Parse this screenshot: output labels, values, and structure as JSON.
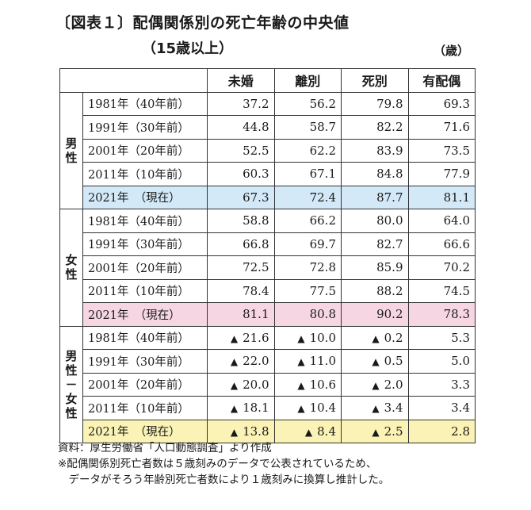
{
  "title": "〔図表１〕配偶関係別の死亡年齢の中央値",
  "subtitle": "（15歳以上）",
  "unit": "（歳）",
  "headers": [
    "未婚",
    "離別",
    "死別",
    "有配偶"
  ],
  "groups": [
    {
      "label": "男性",
      "rows": [
        {
          "year": "1981年（40年前）",
          "values": [
            "37.2",
            "56.2",
            "79.8",
            "69.3"
          ]
        },
        {
          "year": "1991年（30年前）",
          "values": [
            "44.8",
            "58.7",
            "82.2",
            "71.6"
          ]
        },
        {
          "year": "2001年（20年前）",
          "values": [
            "52.5",
            "62.2",
            "83.9",
            "73.5"
          ]
        },
        {
          "year": "2011年（10年前）",
          "values": [
            "60.3",
            "67.1",
            "84.8",
            "77.9"
          ]
        },
        {
          "year": "2021年　（現在）",
          "values": [
            "67.3",
            "72.4",
            "87.7",
            "81.1"
          ]
        }
      ]
    },
    {
      "label": "女性",
      "rows": [
        {
          "year": "1981年（40年前）",
          "values": [
            "58.8",
            "66.2",
            "80.0",
            "64.0"
          ]
        },
        {
          "year": "1991年（30年前）",
          "values": [
            "66.8",
            "69.7",
            "82.7",
            "66.6"
          ]
        },
        {
          "year": "2001年（20年前）",
          "values": [
            "72.5",
            "72.8",
            "85.9",
            "70.2"
          ]
        },
        {
          "year": "2011年（10年前）",
          "values": [
            "78.4",
            "77.5",
            "88.2",
            "74.5"
          ]
        },
        {
          "year": "2021年　（現在）",
          "values": [
            "81.1",
            "80.8",
            "90.2",
            "78.3"
          ]
        }
      ]
    },
    {
      "label": "男性－女性",
      "rows": [
        {
          "year": "1981年（40年前）",
          "values": [
            "21.6",
            "10.0",
            "0.2",
            "5.3"
          ],
          "neg": [
            true,
            true,
            true,
            false
          ]
        },
        {
          "year": "1991年（30年前）",
          "values": [
            "22.0",
            "11.0",
            "0.5",
            "5.0"
          ],
          "neg": [
            true,
            true,
            true,
            false
          ]
        },
        {
          "year": "2001年（20年前）",
          "values": [
            "20.0",
            "10.6",
            "2.0",
            "3.3"
          ],
          "neg": [
            true,
            true,
            true,
            false
          ]
        },
        {
          "year": "2011年（10年前）",
          "values": [
            "18.1",
            "10.4",
            "3.4",
            "3.4"
          ],
          "neg": [
            true,
            true,
            true,
            false
          ]
        },
        {
          "year": "2021年　（現在）",
          "values": [
            "13.8",
            "8.4",
            "2.5",
            "2.8"
          ],
          "neg": [
            true,
            true,
            true,
            false
          ]
        }
      ]
    }
  ],
  "negative_marker": "▲",
  "highlight_colors": {
    "男性": "#d3e9f7",
    "女性": "#f7d6e4",
    "男性－女性": "#faf3b5"
  },
  "notes": [
    "資料：厚生労働省「人口動態調査」より作成",
    "※配偶関係別死亡者数は５歳刻みのデータで公表されているため、",
    "　データがそろう年齢別死亡者数により１歳刻みに換算し推計した。"
  ]
}
